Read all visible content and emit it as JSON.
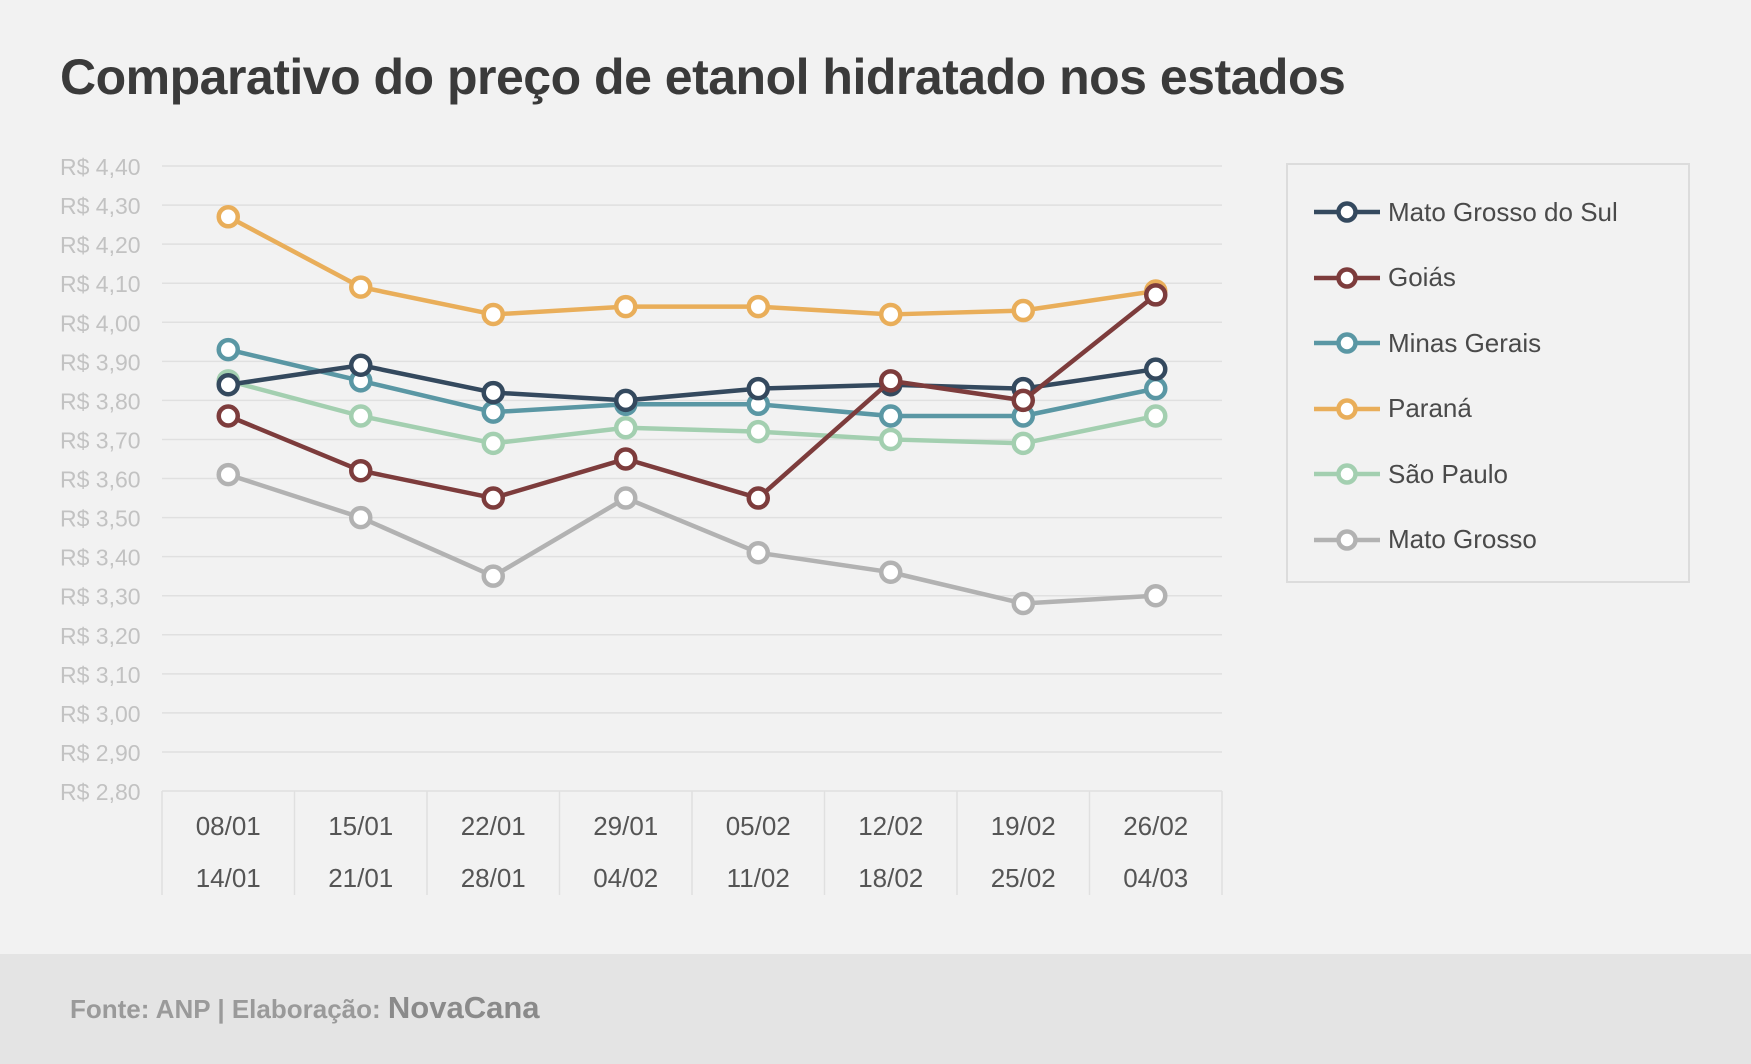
{
  "footer": {
    "source_text": "Fonte: ANP | Elaboração:",
    "brand": "NovaCana"
  },
  "chart_data": {
    "type": "line",
    "title": "Comparativo do preço de etanol hidratado nos estados",
    "xlabel": "",
    "ylabel": "",
    "ylim": [
      2.8,
      4.4
    ],
    "y_ticks": [
      4.4,
      4.3,
      4.2,
      4.1,
      4.0,
      3.9,
      3.8,
      3.7,
      3.6,
      3.5,
      3.4,
      3.3,
      3.2,
      3.1,
      3.0,
      2.9,
      2.8
    ],
    "y_tick_labels": [
      "R$ 4,40",
      "R$ 4,30",
      "R$ 4,20",
      "R$ 4,10",
      "R$ 4,00",
      "R$ 3,90",
      "R$ 3,80",
      "R$ 3,70",
      "R$ 3,60",
      "R$ 3,50",
      "R$ 3,40",
      "R$ 3,30",
      "R$ 3,20",
      "R$ 3,10",
      "R$ 3,00",
      "R$ 2,90",
      "R$ 2,80"
    ],
    "categories": [
      [
        "08/01",
        "14/01"
      ],
      [
        "15/01",
        "21/01"
      ],
      [
        "22/01",
        "28/01"
      ],
      [
        "29/01",
        "04/02"
      ],
      [
        "05/02",
        "11/02"
      ],
      [
        "12/02",
        "18/02"
      ],
      [
        "19/02",
        "25/02"
      ],
      [
        "26/02",
        "04/03"
      ]
    ],
    "grid": true,
    "legend_position": "right",
    "series": [
      {
        "name": "Mato Grosso do Sul",
        "color": "#34495e",
        "values": [
          3.84,
          3.89,
          3.82,
          3.8,
          3.83,
          3.84,
          3.83,
          3.88
        ]
      },
      {
        "name": "Goiás",
        "color": "#7d3c3c",
        "values": [
          3.76,
          3.62,
          3.55,
          3.65,
          3.55,
          3.85,
          3.8,
          4.07
        ]
      },
      {
        "name": "Minas Gerais",
        "color": "#5a97a4",
        "values": [
          3.93,
          3.85,
          3.77,
          3.79,
          3.79,
          3.76,
          3.76,
          3.83
        ]
      },
      {
        "name": "Paraná",
        "color": "#e9ae5a",
        "values": [
          4.27,
          4.09,
          4.02,
          4.04,
          4.04,
          4.02,
          4.03,
          4.08
        ]
      },
      {
        "name": "São Paulo",
        "color": "#a3cfb0",
        "values": [
          3.85,
          3.76,
          3.69,
          3.73,
          3.72,
          3.7,
          3.69,
          3.76
        ]
      },
      {
        "name": "Mato Grosso",
        "color": "#b2b2b2",
        "values": [
          3.61,
          3.5,
          3.35,
          3.55,
          3.41,
          3.36,
          3.28,
          3.3
        ]
      }
    ],
    "draw_order": [
      5,
      4,
      2,
      0,
      3,
      1
    ]
  }
}
